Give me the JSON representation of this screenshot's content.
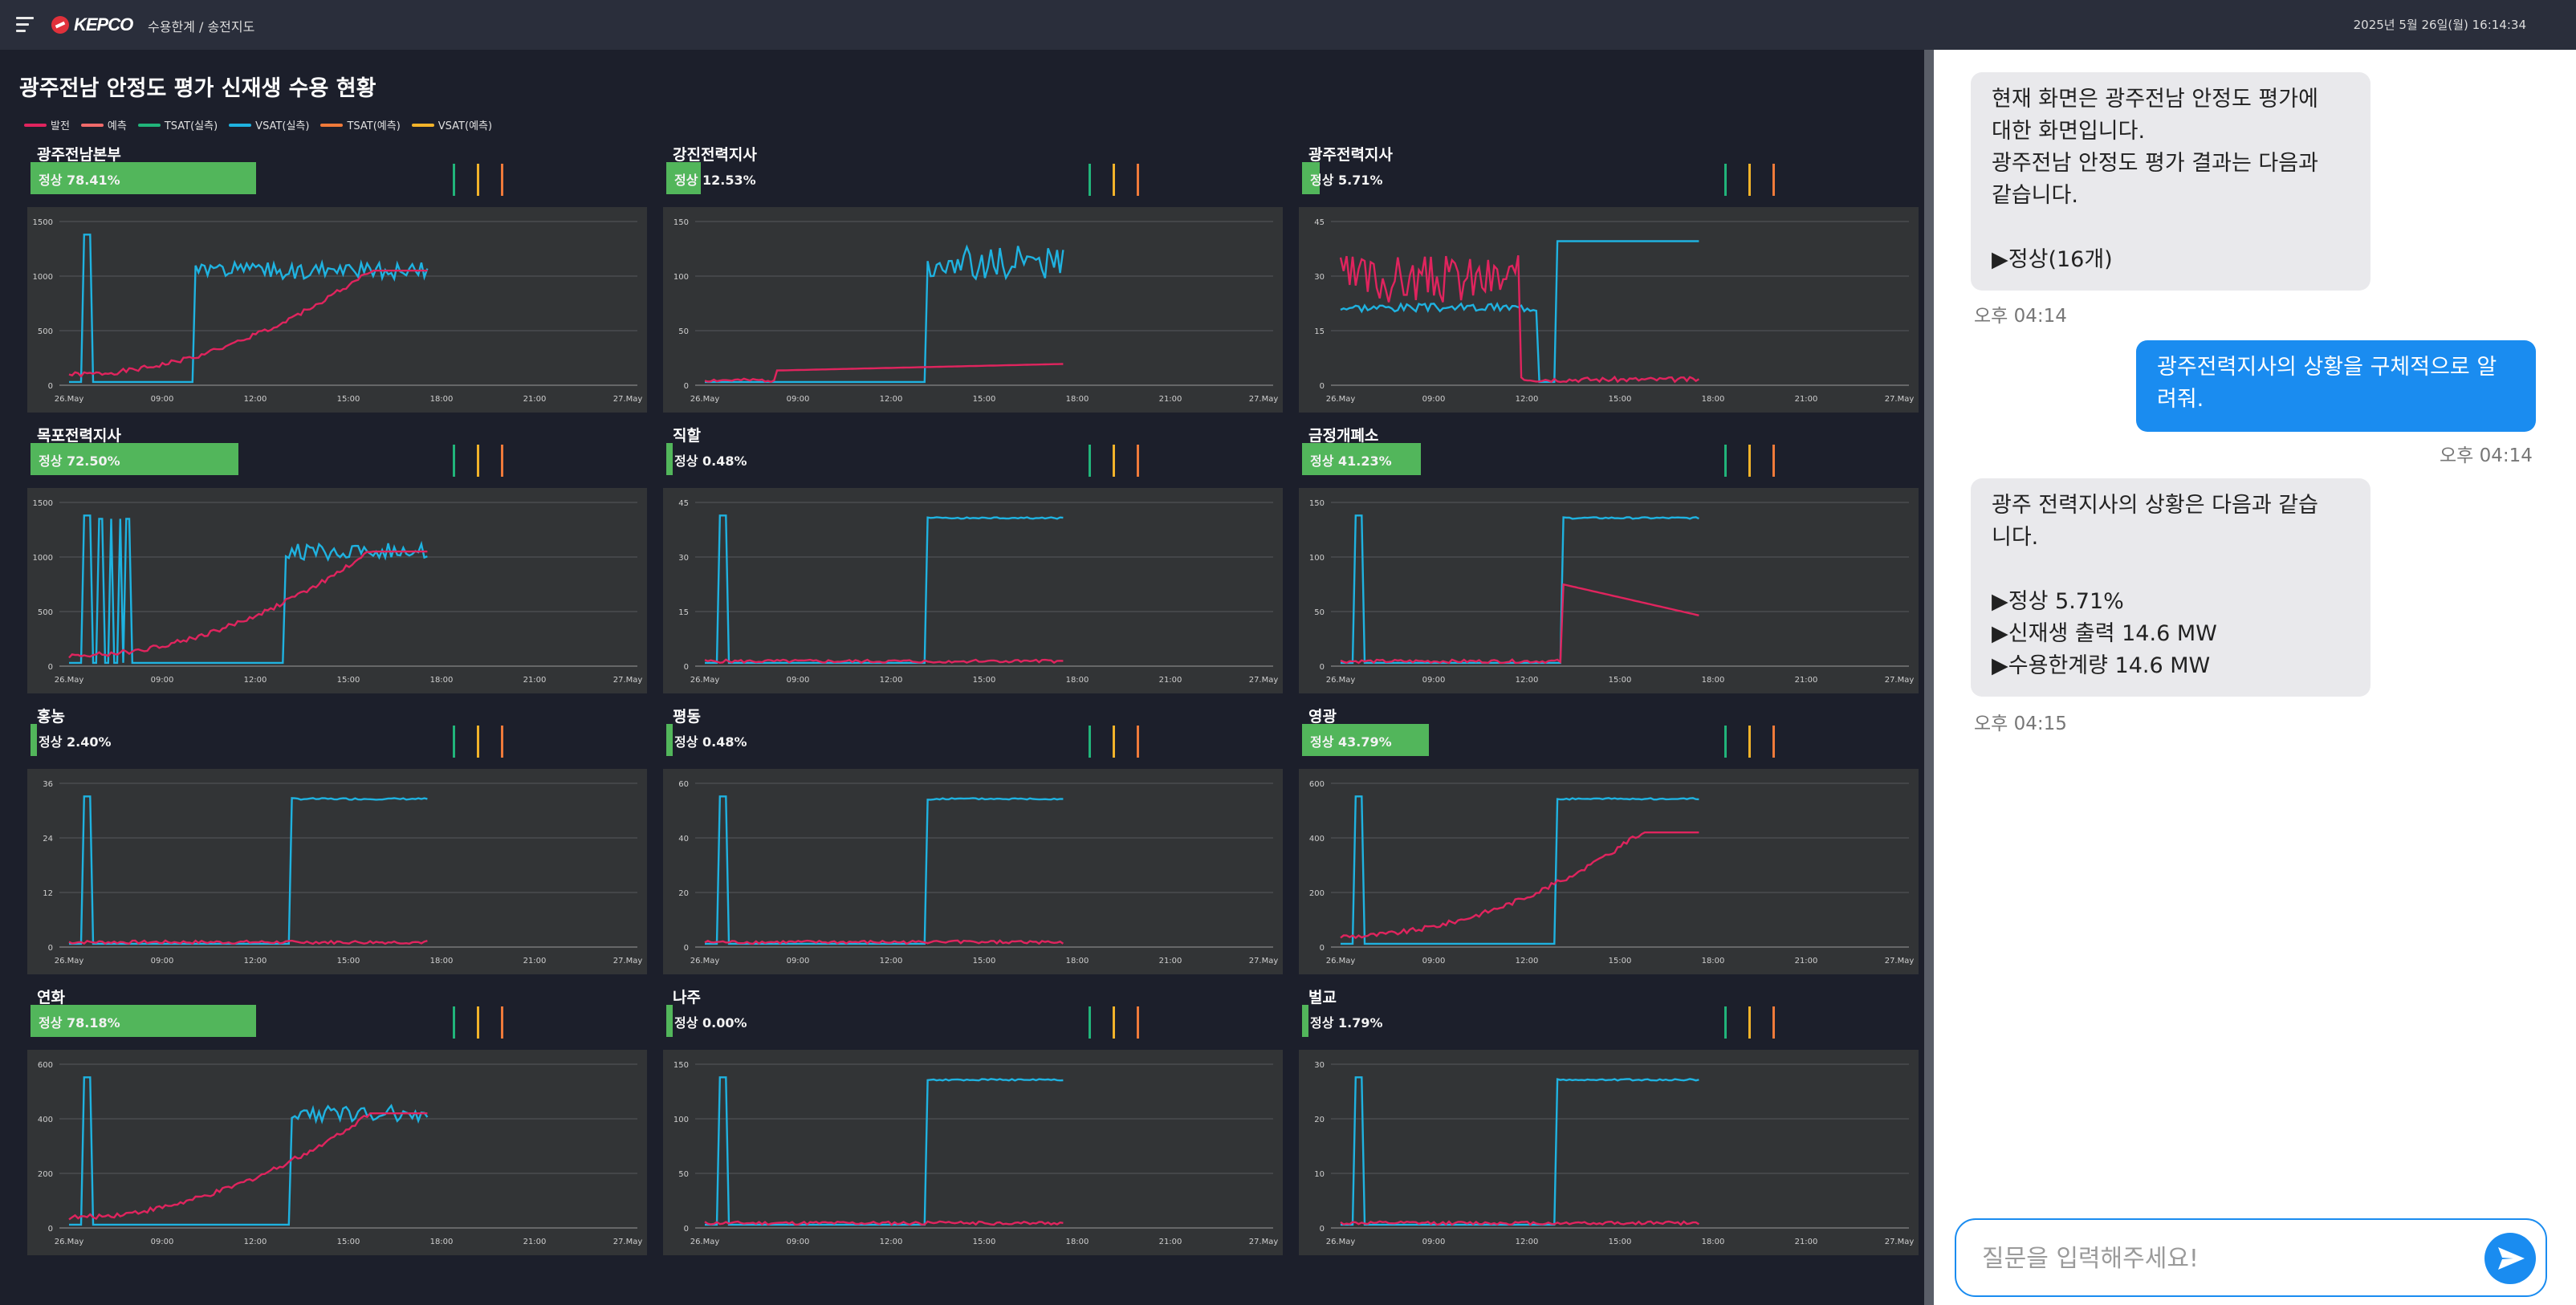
{
  "topbar": {
    "logo_text": "KEPCO",
    "breadcrumb": "수용한계 / 송전지도",
    "datetime": "2025년 5월 26일(월) 16:14:34"
  },
  "dashboard": {
    "title": "광주전남 안정도 평가 신재생 수용 현황",
    "legend": [
      {
        "label": "발전",
        "color": "#e0245e"
      },
      {
        "label": "예측",
        "color": "#f06a6a"
      },
      {
        "label": "TSAT(실측)",
        "color": "#21b47a"
      },
      {
        "label": "VSAT(실측)",
        "color": "#1fb2e0"
      },
      {
        "label": "TSAT(예측)",
        "color": "#f07a3a"
      },
      {
        "label": "VSAT(예측)",
        "color": "#f2b32a"
      }
    ],
    "panels": [
      {
        "name": "광주전남본부",
        "status": "정상 78.41%",
        "ratio": 0.78,
        "yticks": [
          "0",
          "500",
          "1000",
          "1500"
        ],
        "xticks": [
          "26.May",
          "09:00",
          "12:00",
          "15:00",
          "18:00",
          "21:00",
          "27.May"
        ]
      },
      {
        "name": "강진전력지사",
        "status": "정상 12.53%",
        "ratio": 0.12,
        "yticks": [
          "0",
          "50",
          "100",
          "150"
        ],
        "xticks": [
          "26.May",
          "09:00",
          "12:00",
          "15:00",
          "18:00",
          "21:00",
          "27.May"
        ]
      },
      {
        "name": "광주전력지사",
        "status": "정상 5.71%",
        "ratio": 0.06,
        "yticks": [
          "0",
          "15",
          "30",
          "45"
        ],
        "xticks": [
          "26.May",
          "09:00",
          "12:00",
          "15:00",
          "18:00",
          "21:00",
          "27.May"
        ]
      },
      {
        "name": "목포전력지사",
        "status": "정상 72.50%",
        "ratio": 0.72,
        "yticks": [
          "0",
          "500",
          "1000",
          "1500"
        ],
        "xticks": [
          "26.May",
          "09:00",
          "12:00",
          "15:00",
          "18:00",
          "21:00",
          "27.May"
        ]
      },
      {
        "name": "직할",
        "status": "정상 0.48%",
        "ratio": 0.005,
        "yticks": [
          "0",
          "15",
          "30",
          "45"
        ],
        "xticks": [
          "26.May",
          "09:00",
          "12:00",
          "15:00",
          "18:00",
          "21:00",
          "27.May"
        ]
      },
      {
        "name": "금정개폐소",
        "status": "정상 41.23%",
        "ratio": 0.41,
        "yticks": [
          "0",
          "50",
          "100",
          "150"
        ],
        "xticks": [
          "26.May",
          "09:00",
          "12:00",
          "15:00",
          "18:00",
          "21:00",
          "27.May"
        ]
      },
      {
        "name": "홍농",
        "status": "정상 2.40%",
        "ratio": 0.02,
        "yticks": [
          "0",
          "12",
          "24",
          "36"
        ],
        "xticks": [
          "26.May",
          "09:00",
          "12:00",
          "15:00",
          "18:00",
          "21:00",
          "27.May"
        ]
      },
      {
        "name": "평동",
        "status": "정상 0.48%",
        "ratio": 0.005,
        "yticks": [
          "0",
          "20",
          "40",
          "60"
        ],
        "xticks": [
          "26.May",
          "09:00",
          "12:00",
          "15:00",
          "18:00",
          "21:00",
          "27.May"
        ]
      },
      {
        "name": "영광",
        "status": "정상 43.79%",
        "ratio": 0.44,
        "yticks": [
          "0",
          "200",
          "400",
          "600"
        ],
        "xticks": [
          "26.May",
          "09:00",
          "12:00",
          "15:00",
          "18:00",
          "21:00",
          "27.May"
        ]
      },
      {
        "name": "연화",
        "status": "정상 78.18%",
        "ratio": 0.78,
        "yticks": [
          "0",
          "200",
          "400",
          "600"
        ],
        "xticks": [
          "26.May",
          "09:00",
          "12:00",
          "15:00",
          "18:00",
          "21:00",
          "27.May"
        ]
      },
      {
        "name": "나주",
        "status": "정상 0.00%",
        "ratio": 0.0,
        "yticks": [
          "0",
          "50",
          "100",
          "150"
        ],
        "xticks": [
          "26.May",
          "09:00",
          "12:00",
          "15:00",
          "18:00",
          "21:00",
          "27.May"
        ]
      },
      {
        "name": "벌교",
        "status": "정상 1.79%",
        "ratio": 0.02,
        "yticks": [
          "0",
          "10",
          "20",
          "30"
        ],
        "xticks": [
          "26.May",
          "09:00",
          "12:00",
          "15:00",
          "18:00",
          "21:00",
          "27.May"
        ]
      }
    ]
  },
  "chat": {
    "messages": [
      {
        "role": "bot",
        "text": "현재 화면은 광주전남 안정도 평가에\n대한 화면입니다.\n광주전남 안정도 평가 결과는 다음과\n같습니다.\n\n▶정상(16개)",
        "time": "오후 04:14"
      },
      {
        "role": "user",
        "text": "광주전력지사의 상황을 구체적으로 알\n려줘.",
        "time": "오후 04:14"
      },
      {
        "role": "bot",
        "text": "광주 전력지사의 상황은 다음과 같습\n니다.\n\n▶정상 5.71%\n▶신재생 출력 14.6 MW\n▶수용한계량 14.6 MW",
        "time": "오후 04:15"
      }
    ],
    "input_placeholder": "질문을 입력해주세요!"
  }
}
